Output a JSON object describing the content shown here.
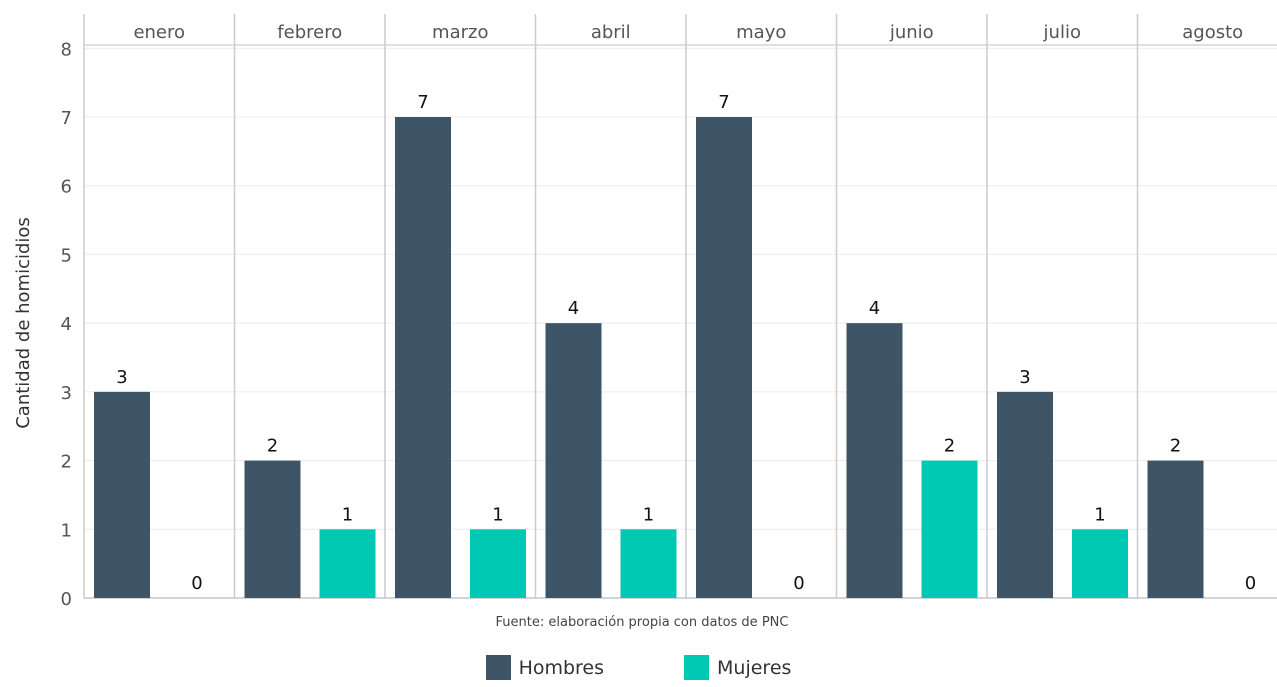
{
  "chart_data": {
    "type": "bar",
    "facet_labels": [
      "enero",
      "febrero",
      "marzo",
      "abril",
      "mayo",
      "junio",
      "julio",
      "agosto"
    ],
    "series": [
      {
        "name": "Hombres",
        "color": "#3d5566",
        "values": [
          3,
          2,
          7,
          4,
          7,
          4,
          3,
          2
        ]
      },
      {
        "name": "Mujeres",
        "color": "#00c9b3",
        "values": [
          0,
          1,
          1,
          1,
          0,
          2,
          1,
          0
        ]
      }
    ],
    "ylabel": "Cantidad de homicidios",
    "xlabel": "",
    "ylim": [
      0,
      8
    ],
    "yticks": [
      0,
      1,
      2,
      3,
      4,
      5,
      6,
      7,
      8
    ],
    "grid": true,
    "legend_position": "bottom",
    "caption": "Fuente: elaboración propia con datos de PNC"
  }
}
